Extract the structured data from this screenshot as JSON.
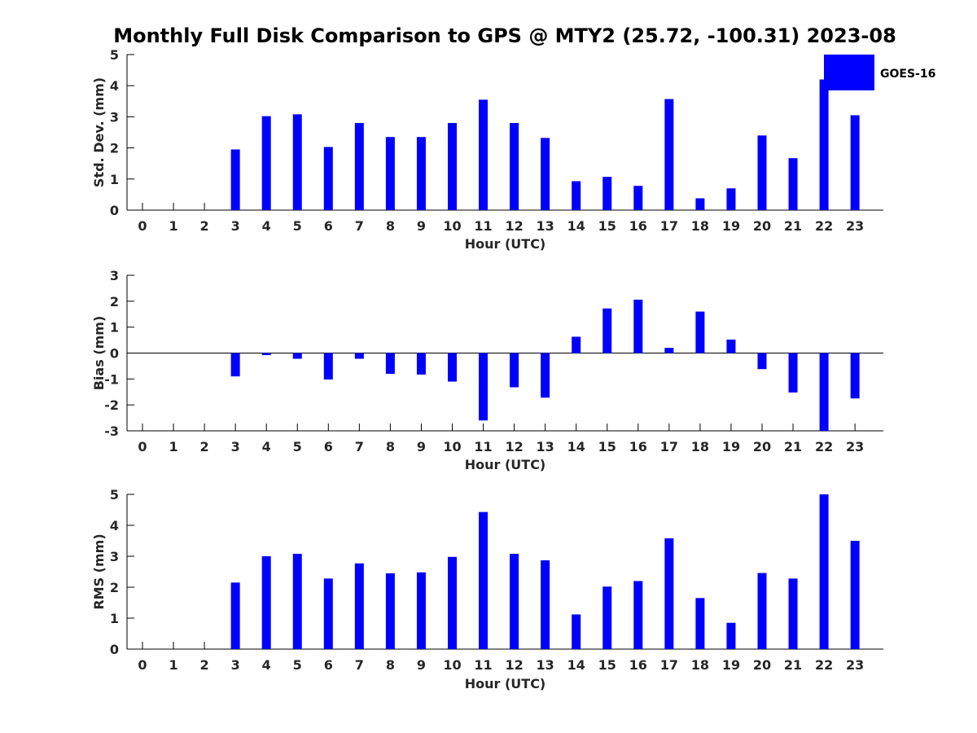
{
  "title": "Monthly Full Disk Comparison to GPS @ MTY2 (25.72, -100.31) 2023-08",
  "colors": {
    "bar": "#0000ff",
    "axis": "#000000",
    "text": "#262626"
  },
  "legend": {
    "label": "GOES-16",
    "placement": "top-right"
  },
  "chart_data": [
    {
      "type": "bar",
      "title": "",
      "xlabel": "Hour (UTC)",
      "ylabel": "Std. Dev. (mm)",
      "categories": [
        "0",
        "1",
        "2",
        "3",
        "4",
        "5",
        "6",
        "7",
        "8",
        "9",
        "10",
        "11",
        "12",
        "13",
        "14",
        "15",
        "16",
        "17",
        "18",
        "19",
        "20",
        "21",
        "22",
        "23"
      ],
      "ylim": [
        0,
        5
      ],
      "yticks": [
        0,
        1,
        2,
        3,
        4,
        5
      ],
      "grid": false,
      "series": [
        {
          "name": "GOES-16",
          "values": [
            0,
            0,
            0,
            1.95,
            3.02,
            3.08,
            2.03,
            2.8,
            2.35,
            2.35,
            2.8,
            3.55,
            2.8,
            2.32,
            0.93,
            1.07,
            0.78,
            3.57,
            0.38,
            0.7,
            2.4,
            1.67,
            4.2,
            3.05
          ]
        }
      ]
    },
    {
      "type": "bar",
      "title": "",
      "xlabel": "Hour (UTC)",
      "ylabel": "Bias (mm)",
      "categories": [
        "0",
        "1",
        "2",
        "3",
        "4",
        "5",
        "6",
        "7",
        "8",
        "9",
        "10",
        "11",
        "12",
        "13",
        "14",
        "15",
        "16",
        "17",
        "18",
        "19",
        "20",
        "21",
        "22",
        "23"
      ],
      "ylim": [
        -3,
        3
      ],
      "yticks": [
        -3,
        -2,
        -1,
        0,
        1,
        2,
        3
      ],
      "grid": false,
      "series": [
        {
          "name": "GOES-16",
          "values": [
            0,
            0,
            0,
            -0.9,
            -0.08,
            -0.22,
            -1.02,
            -0.22,
            -0.8,
            -0.83,
            -1.1,
            -2.6,
            -1.32,
            -1.72,
            0.63,
            1.72,
            2.06,
            0.2,
            1.6,
            0.52,
            -0.62,
            -1.52,
            -3.0,
            -1.75
          ]
        }
      ]
    },
    {
      "type": "bar",
      "title": "",
      "xlabel": "Hour (UTC)",
      "ylabel": "RMS (mm)",
      "categories": [
        "0",
        "1",
        "2",
        "3",
        "4",
        "5",
        "6",
        "7",
        "8",
        "9",
        "10",
        "11",
        "12",
        "13",
        "14",
        "15",
        "16",
        "17",
        "18",
        "19",
        "20",
        "21",
        "22",
        "23"
      ],
      "ylim": [
        0,
        5
      ],
      "yticks": [
        0,
        1,
        2,
        3,
        4,
        5
      ],
      "grid": false,
      "series": [
        {
          "name": "GOES-16",
          "values": [
            0,
            0,
            0,
            2.15,
            3.0,
            3.08,
            2.28,
            2.77,
            2.45,
            2.48,
            2.98,
            4.43,
            3.08,
            2.87,
            1.12,
            2.02,
            2.2,
            3.58,
            1.65,
            0.85,
            2.46,
            2.28,
            5.0,
            3.5
          ]
        }
      ]
    }
  ]
}
